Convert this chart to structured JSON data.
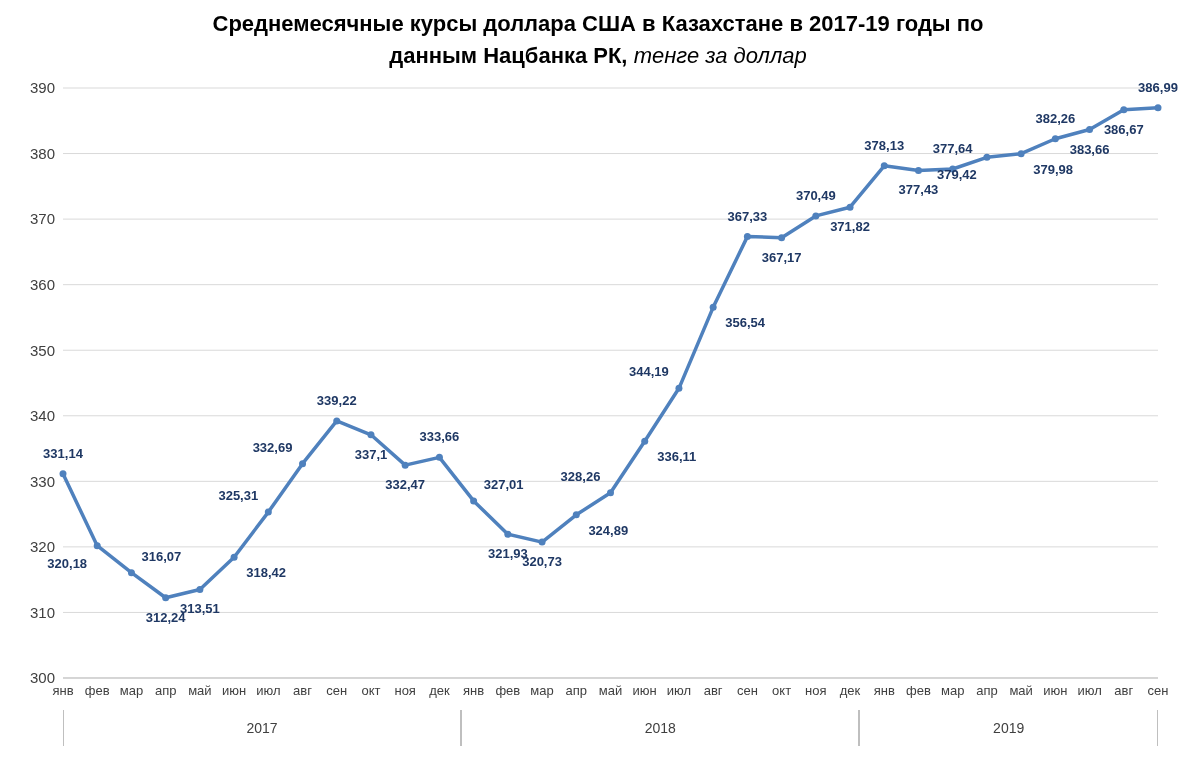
{
  "chart_data": {
    "type": "line",
    "title": "Среднемесячные курсы доллара США в Казахстане в 2017-19 годы по данным Нацбанка РК,",
    "subtitle": "тенге за доллар",
    "categories": [
      "янв",
      "фев",
      "мар",
      "апр",
      "май",
      "июн",
      "июл",
      "авг",
      "сен",
      "окт",
      "ноя",
      "дек",
      "янв",
      "фев",
      "мар",
      "апр",
      "май",
      "июн",
      "июл",
      "авг",
      "сен",
      "окт",
      "ноя",
      "дек",
      "янв",
      "фев",
      "мар",
      "апр",
      "май",
      "июн",
      "июл",
      "авг",
      "сен"
    ],
    "series": [
      {
        "color": "#4f81bd",
        "values": [
          331.14,
          320.18,
          316.07,
          312.24,
          313.51,
          318.42,
          325.31,
          332.69,
          339.22,
          337.1,
          332.47,
          333.66,
          327.01,
          321.93,
          320.73,
          324.89,
          328.26,
          336.11,
          344.19,
          356.54,
          367.33,
          367.17,
          370.49,
          371.82,
          378.13,
          377.43,
          377.64,
          379.42,
          379.98,
          382.26,
          383.66,
          386.67,
          386.99
        ],
        "value_labels": [
          "331,14",
          "320,18",
          "316,07",
          "312,24",
          "313,51",
          "318,42",
          "325,31",
          "332,69",
          "339,22",
          "337,1",
          "332,47",
          "333,66",
          "327,01",
          "321,93",
          "320,73",
          "324,89",
          "328,26",
          "336,11",
          "344,19",
          "356,54",
          "367,33",
          "367,17",
          "370,49",
          "371,82",
          "378,13",
          "377,43",
          "377,64",
          "379,42",
          "379,98",
          "382,26",
          "383,66",
          "386,67",
          "386,99"
        ]
      }
    ],
    "annotations": [
      "2017",
      "2018",
      "2019"
    ],
    "ylim": [
      300,
      390
    ],
    "yticks": [
      300,
      310,
      320,
      330,
      340,
      350,
      360,
      370,
      380,
      390
    ],
    "grid": "y",
    "marker": "circle",
    "line_style": "solid"
  }
}
